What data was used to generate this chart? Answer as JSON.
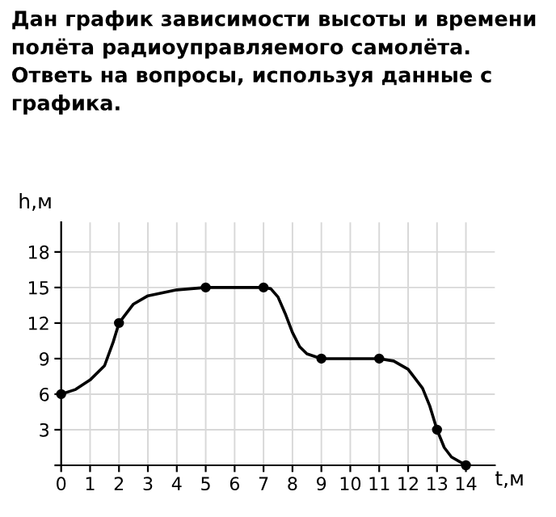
{
  "chart_data": {
    "type": "line",
    "title": "Дан график зависимости высоты и времени полёта радиоуправляемого самолёта. Ответь на вопросы, используя данные с графика.",
    "xlabel": "t,м",
    "ylabel": "h,м",
    "xlim": [
      0,
      15
    ],
    "ylim": [
      0,
      20.5
    ],
    "xticks": [
      0,
      1,
      2,
      3,
      4,
      5,
      6,
      7,
      8,
      9,
      10,
      11,
      12,
      13,
      14
    ],
    "yticks": [
      {
        "value": 0,
        "label": null
      },
      3,
      6,
      9,
      12,
      15,
      18
    ],
    "grid": true,
    "series": [
      {
        "color": "#000000",
        "marker": "none",
        "x": [
          0,
          0.5,
          1,
          1.5,
          1.8,
          2,
          2.5,
          3,
          4,
          5,
          7,
          7.25,
          7.5,
          7.75,
          8,
          8.25,
          8.5,
          9,
          11,
          11.5,
          12,
          12.5,
          12.75,
          13,
          13.25,
          13.5,
          14
        ],
        "values": [
          6,
          6.4,
          7.2,
          8.4,
          10.4,
          12,
          13.6,
          14.3,
          14.8,
          15,
          15,
          14.9,
          14.2,
          12.8,
          11.2,
          10.0,
          9.4,
          9,
          9,
          8.8,
          8.1,
          6.5,
          5,
          3,
          1.5,
          0.7,
          0
        ]
      },
      {
        "type": "scatter",
        "color": "#000000",
        "marker": "circle",
        "x": [
          0,
          2,
          5,
          7,
          9,
          11,
          13,
          14
        ],
        "values": [
          6,
          12,
          15,
          15,
          9,
          9,
          3,
          0
        ]
      }
    ]
  }
}
